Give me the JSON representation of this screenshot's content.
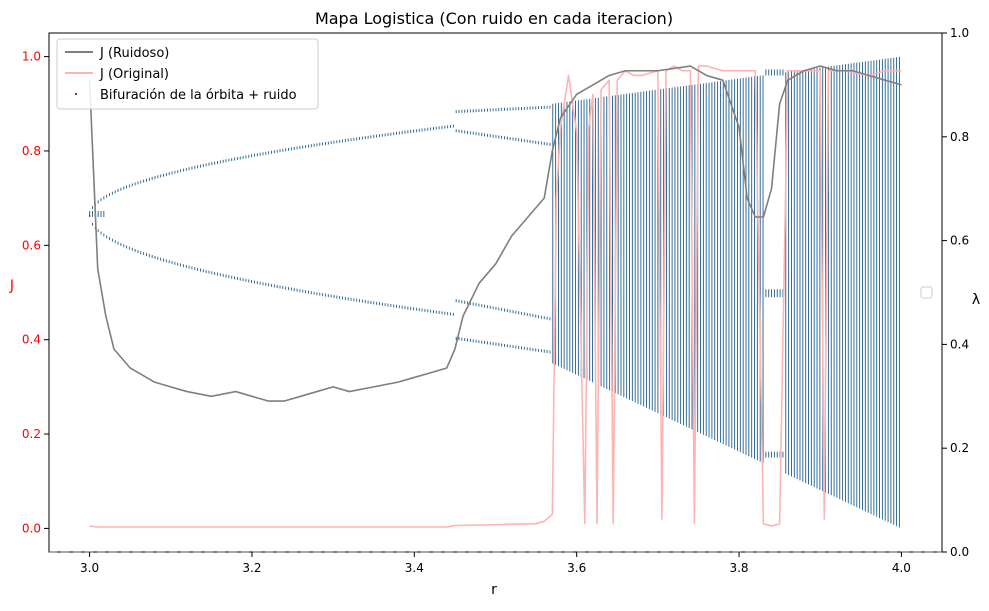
{
  "chart_data": {
    "type": "line",
    "title": "Mapa Logistica (Con ruido en cada iteracion)",
    "xlabel": "r",
    "ylabel": "J",
    "y2label": "λ",
    "xlim": [
      2.95,
      4.05
    ],
    "ylim": [
      -0.05,
      1.05
    ],
    "y2lim": [
      0.0,
      1.0
    ],
    "xticks": [
      "3.0",
      "3.2",
      "3.4",
      "3.6",
      "3.8",
      "4.0"
    ],
    "yticks": [
      "0.0",
      "0.2",
      "0.4",
      "0.6",
      "0.8",
      "1.0"
    ],
    "y2ticks": [
      "0.0",
      "0.2",
      "0.4",
      "0.6",
      "0.8",
      "1.0"
    ],
    "grid": false,
    "legend_position": "top-left",
    "colors": {
      "ruidoso": "#7f7f7f",
      "original": "#ffb3b3",
      "bifurcation": "#1f5f8b",
      "left_axis": "#ff0000"
    },
    "series": [
      {
        "name": "J (Ruidoso)",
        "points": [
          [
            3.0,
            0.95
          ],
          [
            3.01,
            0.55
          ],
          [
            3.02,
            0.45
          ],
          [
            3.03,
            0.38
          ],
          [
            3.05,
            0.34
          ],
          [
            3.08,
            0.31
          ],
          [
            3.1,
            0.3
          ],
          [
            3.12,
            0.29
          ],
          [
            3.15,
            0.28
          ],
          [
            3.18,
            0.29
          ],
          [
            3.2,
            0.28
          ],
          [
            3.22,
            0.27
          ],
          [
            3.24,
            0.27
          ],
          [
            3.26,
            0.28
          ],
          [
            3.28,
            0.29
          ],
          [
            3.3,
            0.3
          ],
          [
            3.32,
            0.29
          ],
          [
            3.35,
            0.3
          ],
          [
            3.38,
            0.31
          ],
          [
            3.4,
            0.32
          ],
          [
            3.42,
            0.33
          ],
          [
            3.44,
            0.34
          ],
          [
            3.45,
            0.38
          ],
          [
            3.46,
            0.45
          ],
          [
            3.48,
            0.52
          ],
          [
            3.5,
            0.56
          ],
          [
            3.52,
            0.62
          ],
          [
            3.54,
            0.66
          ],
          [
            3.56,
            0.7
          ],
          [
            3.57,
            0.8
          ],
          [
            3.58,
            0.87
          ],
          [
            3.6,
            0.92
          ],
          [
            3.62,
            0.94
          ],
          [
            3.64,
            0.96
          ],
          [
            3.66,
            0.97
          ],
          [
            3.7,
            0.97
          ],
          [
            3.74,
            0.98
          ],
          [
            3.76,
            0.96
          ],
          [
            3.78,
            0.95
          ],
          [
            3.8,
            0.85
          ],
          [
            3.81,
            0.7
          ],
          [
            3.82,
            0.66
          ],
          [
            3.83,
            0.66
          ],
          [
            3.84,
            0.72
          ],
          [
            3.85,
            0.9
          ],
          [
            3.86,
            0.95
          ],
          [
            3.88,
            0.97
          ],
          [
            3.9,
            0.98
          ],
          [
            3.92,
            0.97
          ],
          [
            3.94,
            0.97
          ],
          [
            3.96,
            0.96
          ],
          [
            3.98,
            0.95
          ],
          [
            4.0,
            0.94
          ]
        ]
      },
      {
        "name": "J (Original)",
        "points": [
          [
            3.0,
            0.005
          ],
          [
            3.01,
            0.003
          ],
          [
            3.2,
            0.003
          ],
          [
            3.44,
            0.003
          ],
          [
            3.45,
            0.006
          ],
          [
            3.5,
            0.008
          ],
          [
            3.55,
            0.01
          ],
          [
            3.56,
            0.015
          ],
          [
            3.57,
            0.03
          ],
          [
            3.575,
            0.7
          ],
          [
            3.58,
            0.85
          ],
          [
            3.59,
            0.96
          ],
          [
            3.6,
            0.84
          ],
          [
            3.61,
            0.01
          ],
          [
            3.615,
            0.85
          ],
          [
            3.62,
            0.92
          ],
          [
            3.625,
            0.01
          ],
          [
            3.63,
            0.93
          ],
          [
            3.64,
            0.95
          ],
          [
            3.645,
            0.01
          ],
          [
            3.65,
            0.95
          ],
          [
            3.66,
            0.97
          ],
          [
            3.67,
            0.96
          ],
          [
            3.68,
            0.96
          ],
          [
            3.7,
            0.97
          ],
          [
            3.705,
            0.02
          ],
          [
            3.71,
            0.97
          ],
          [
            3.72,
            0.98
          ],
          [
            3.73,
            0.97
          ],
          [
            3.74,
            0.97
          ],
          [
            3.745,
            0.01
          ],
          [
            3.75,
            0.98
          ],
          [
            3.76,
            0.98
          ],
          [
            3.78,
            0.97
          ],
          [
            3.8,
            0.97
          ],
          [
            3.82,
            0.97
          ],
          [
            3.83,
            0.01
          ],
          [
            3.84,
            0.005
          ],
          [
            3.85,
            0.01
          ],
          [
            3.86,
            0.97
          ],
          [
            3.88,
            0.97
          ],
          [
            3.9,
            0.97
          ],
          [
            3.905,
            0.02
          ],
          [
            3.91,
            0.97
          ],
          [
            3.93,
            0.97
          ],
          [
            3.96,
            0.96
          ],
          [
            3.98,
            0.97
          ],
          [
            4.0,
            0.97
          ]
        ]
      }
    ],
    "scatter_series": {
      "name": "Bifuración de la órbita + ruido",
      "axis": "left",
      "branches": [
        {
          "r_range": [
            3.0,
            3.45
          ],
          "x_lower": [
            0.66,
            0.45
          ],
          "x_upper": [
            0.66,
            0.85
          ]
        },
        {
          "r_range": [
            3.45,
            3.57
          ],
          "x_bands": [
            [
              0.89,
              0.89
            ],
            [
              0.82,
              0.82
            ],
            [
              0.5,
              0.37
            ],
            [
              0.39,
              0.38
            ]
          ]
        },
        {
          "r_range": [
            3.57,
            4.0
          ],
          "x_min": [
            0.35,
            0.0
          ],
          "x_max": [
            0.9,
            1.0
          ],
          "cluster_samples": 8
        },
        {
          "r_range": [
            3.83,
            3.855
          ],
          "window": "period-3",
          "x_values": [
            0.96,
            0.5,
            0.15
          ]
        }
      ]
    },
    "legend": {
      "entries": [
        "J (Ruidoso)",
        "J (Original)",
        "Bifuración de la órbita + ruido"
      ]
    }
  }
}
